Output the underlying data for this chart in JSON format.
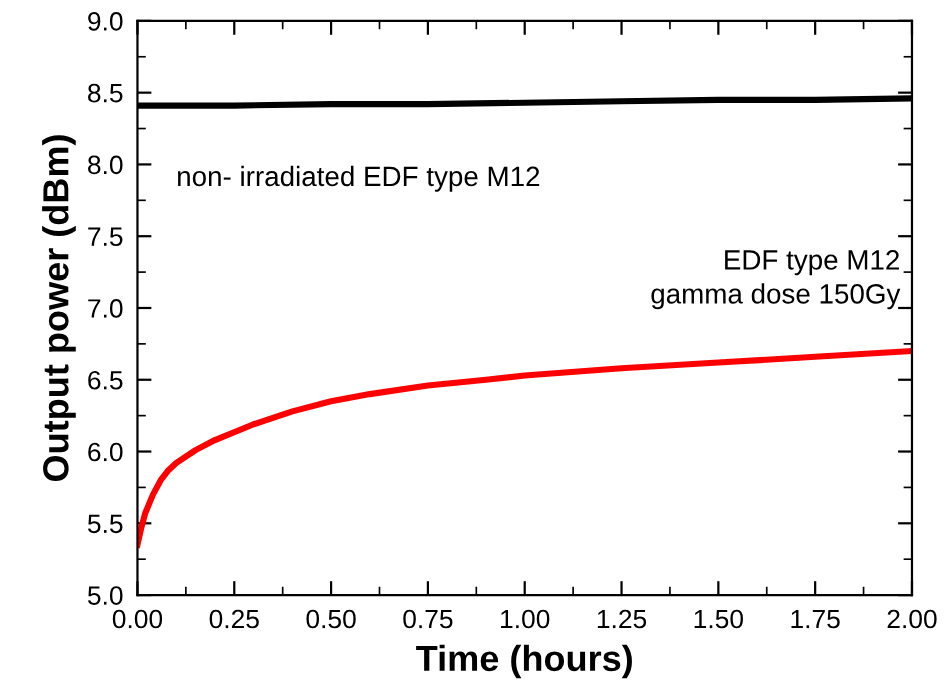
{
  "chart_data": {
    "type": "line",
    "xlabel": "Time (hours)",
    "ylabel": "Output power (dBm)",
    "xlim": [
      0,
      2
    ],
    "ylim": [
      5,
      9
    ],
    "xticks": [
      {
        "value": 0,
        "label": "0.00"
      },
      {
        "value": 0.25,
        "label": "0.25"
      },
      {
        "value": 0.5,
        "label": "0.50"
      },
      {
        "value": 0.75,
        "label": "0.75"
      },
      {
        "value": 1,
        "label": "1.00"
      },
      {
        "value": 1.25,
        "label": "1.25"
      },
      {
        "value": 1.5,
        "label": "1.50"
      },
      {
        "value": 1.75,
        "label": "1.75"
      },
      {
        "value": 2,
        "label": "2.00"
      }
    ],
    "yticks": [
      {
        "value": 5,
        "label": "5.0"
      },
      {
        "value": 5.5,
        "label": "5.5"
      },
      {
        "value": 6,
        "label": "6.0"
      },
      {
        "value": 6.5,
        "label": "6.5"
      },
      {
        "value": 7,
        "label": "7.0"
      },
      {
        "value": 7.5,
        "label": "7.5"
      },
      {
        "value": 8,
        "label": "8.0"
      },
      {
        "value": 8.5,
        "label": "8.5"
      },
      {
        "value": 9,
        "label": "9.0"
      }
    ],
    "annotations": [
      "non- irradiated EDF type M12",
      "EDF type M12\ngamma dose 150Gy"
    ],
    "grid": false,
    "legend": false,
    "marker": "none",
    "line_style": "solid",
    "series": [
      {
        "color": "#000000",
        "x": [
          0,
          0.25,
          0.5,
          0.75,
          1,
          1.25,
          1.5,
          1.75,
          2
        ],
        "values": [
          8.41,
          8.41,
          8.42,
          8.42,
          8.43,
          8.44,
          8.45,
          8.45,
          8.46
        ]
      },
      {
        "color": "#ff0000",
        "x": [
          0,
          0.01,
          0.02,
          0.04,
          0.06,
          0.08,
          0.1,
          0.15,
          0.2,
          0.3,
          0.4,
          0.5,
          0.6,
          0.75,
          0.9,
          1,
          1.25,
          1.5,
          1.75,
          2
        ],
        "values": [
          5.35,
          5.47,
          5.57,
          5.7,
          5.8,
          5.87,
          5.92,
          6.01,
          6.08,
          6.19,
          6.28,
          6.35,
          6.4,
          6.46,
          6.5,
          6.53,
          6.58,
          6.62,
          6.66,
          6.7
        ]
      }
    ]
  }
}
